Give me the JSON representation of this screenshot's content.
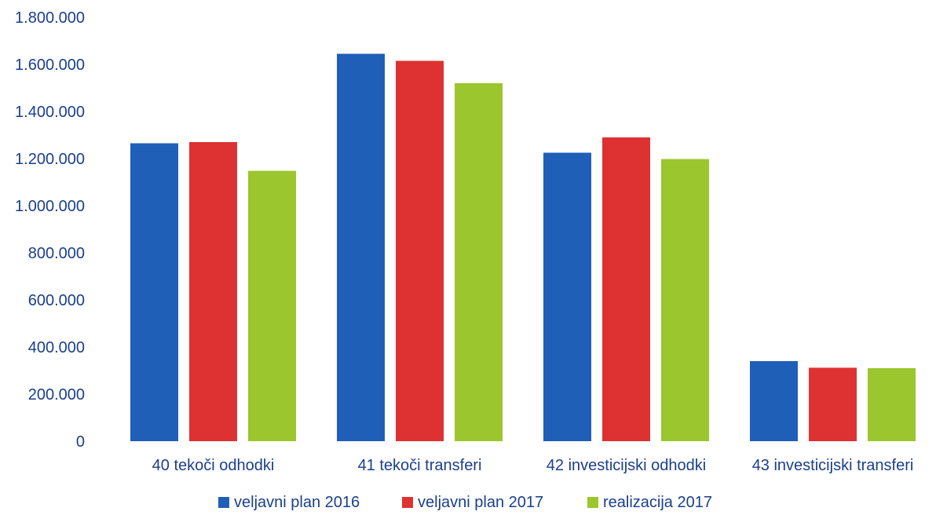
{
  "chart_data": {
    "type": "bar",
    "categories": [
      "40 tekoči odhodki",
      "41 tekoči transferi",
      "42 investicijski odhodki",
      "43 investicijski transferi"
    ],
    "series": [
      {
        "name": "veljavni plan 2016",
        "color": "#1f5fb8",
        "values": [
          1265000,
          1645000,
          1225000,
          340000
        ]
      },
      {
        "name": "veljavni plan 2017",
        "color": "#de3232",
        "values": [
          1270000,
          1615000,
          1290000,
          312000
        ]
      },
      {
        "name": "realizacija 2017",
        "color": "#9cc62e",
        "values": [
          1148000,
          1520000,
          1198000,
          310000
        ]
      }
    ],
    "yticks": [
      "0",
      "200.000",
      "400.000",
      "600.000",
      "800.000",
      "1.000.000",
      "1.200.000",
      "1.400.000",
      "1.600.000",
      "1.800.000"
    ],
    "ylim": [
      0,
      1800000
    ],
    "grid": false,
    "legend_position": "bottom"
  }
}
